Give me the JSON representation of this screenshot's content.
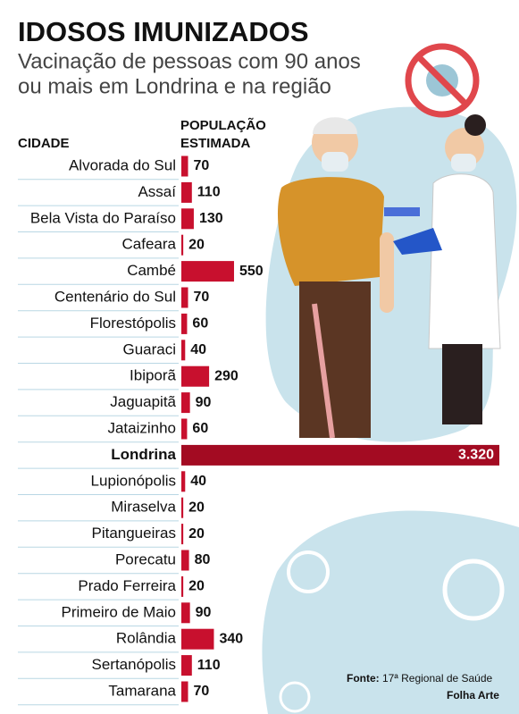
{
  "chart_data": {
    "type": "bar",
    "orientation": "horizontal",
    "title": "IDOSOS IMUNIZADOS",
    "subtitle": [
      "Vacinação de pessoas com 90 anos",
      "ou mais em Londrina e na região"
    ],
    "category_header": "CIDADE",
    "value_header": [
      "POPULAÇÃO",
      "ESTIMADA"
    ],
    "categories": [
      "Alvorada do Sul",
      "Assaí",
      "Bela Vista do Paraíso",
      "Cafeara",
      "Cambé",
      "Centenário do Sul",
      "Florestópolis",
      "Guaraci",
      "Ibiporã",
      "Jaguapitã",
      "Jataizinho",
      "Londrina",
      "Lupionópolis",
      "Miraselva",
      "Pitangueiras",
      "Porecatu",
      "Prado Ferreira",
      "Primeiro de Maio",
      "Rolândia",
      "Sertanópolis",
      "Tamarana"
    ],
    "values": [
      70,
      110,
      130,
      20,
      550,
      70,
      60,
      40,
      290,
      90,
      60,
      3320,
      40,
      20,
      20,
      80,
      20,
      90,
      340,
      110,
      70
    ],
    "value_labels": [
      "70",
      "110",
      "130",
      "20",
      "550",
      "70",
      "60",
      "40",
      "290",
      "90",
      "60",
      "3.320",
      "40",
      "20",
      "20",
      "80",
      "20",
      "90",
      "340",
      "110",
      "70"
    ],
    "color": "#c8102e",
    "source": {
      "label": "Fonte:",
      "text": "17ª Regional de Saúde",
      "credit": "Folha Arte"
    }
  }
}
